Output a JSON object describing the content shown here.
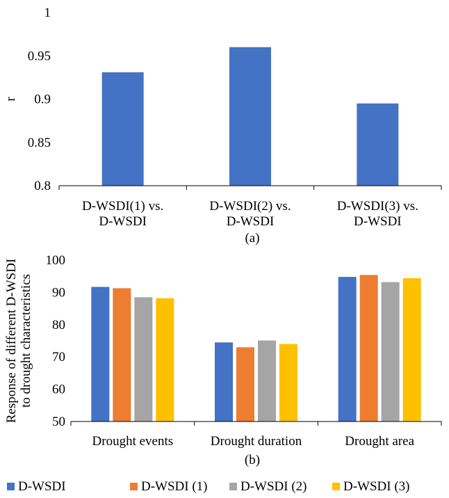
{
  "chart_data": [
    {
      "type": "bar",
      "panel_label": "(a)",
      "ylabel": "r",
      "xlabel": "",
      "ylim": [
        0.8,
        1.0
      ],
      "yticks": [
        "0.8",
        "0.85",
        "0.9",
        "0.95",
        "1"
      ],
      "categories": [
        [
          "D-WSDI(1) vs.",
          "D-WSDI"
        ],
        [
          "D-WSDI(2) vs.",
          "D-WSDI"
        ],
        [
          "D-WSDI(3) vs.",
          "D-WSDI"
        ]
      ],
      "values": [
        0.931,
        0.96,
        0.895
      ],
      "color": "#4472C4",
      "grid": false
    },
    {
      "type": "bar",
      "panel_label": "(b)",
      "ylabel": [
        "Response of different D-WSDI",
        "to drought characteristics"
      ],
      "xlabel": "",
      "ylim": [
        50,
        100
      ],
      "yticks": [
        "50",
        "60",
        "70",
        "80",
        "90",
        "100"
      ],
      "categories": [
        "Drought events",
        "Drought duration",
        "Drought area"
      ],
      "series": [
        {
          "name": "D-WSDI",
          "color": "#4472C4",
          "values": [
            91.7,
            74.5,
            94.8
          ]
        },
        {
          "name": "D-WSDI (1)",
          "color": "#ED7D31",
          "values": [
            91.3,
            73.0,
            95.4
          ]
        },
        {
          "name": "D-WSDI (2)",
          "color": "#A5A5A5",
          "values": [
            88.5,
            75.1,
            93.2
          ]
        },
        {
          "name": "D-WSDI (3)",
          "color": "#FFC000",
          "values": [
            88.2,
            74.0,
            94.4
          ]
        }
      ],
      "legend": "bottom",
      "grid": false
    }
  ]
}
